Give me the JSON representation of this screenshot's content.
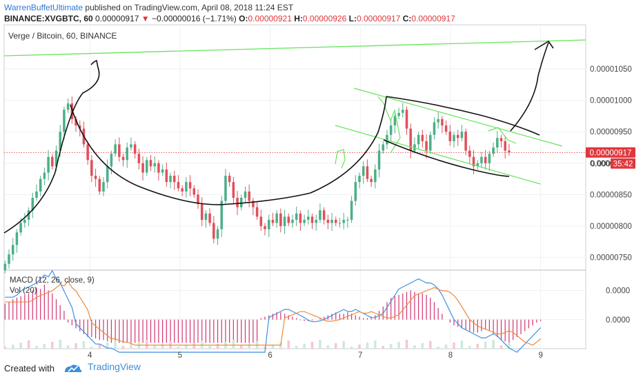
{
  "header": {
    "author": "WarrenBuffetUltimate",
    "published": "published on TradingView.com, April 08, 2018 11:24 EST",
    "symbol": "BINANCE:XVGBTC, 60",
    "last": "0.00000917",
    "change": "−0.00000016 (−1.71%)",
    "o_label": "O:",
    "o_value": "0.00000921",
    "h_label": "H:",
    "h_value": "0.00000926",
    "l_label": "L:",
    "l_value": "0.00000917",
    "c_label": "C:",
    "c_value": "0.00000917"
  },
  "footer": {
    "created_with": "Created with",
    "brand": "TradingView"
  },
  "chart_data": {
    "type": "candlestick",
    "title": "Verge / Bitcoin, 60, BINANCE",
    "price_axis": {
      "ticks": [
        "0.00001050",
        "0.00001000",
        "0.00000950",
        "0.00000900",
        "0.00000850",
        "0.00000800",
        "0.00000750"
      ],
      "tick_values": [
        10.5,
        10.0,
        9.5,
        9.0,
        8.5,
        8.0,
        7.5
      ],
      "range": [
        7.3,
        11.2
      ]
    },
    "x_axis": {
      "ticks": [
        "4",
        "5",
        "6",
        "7",
        "8",
        "9"
      ],
      "tick_values": [
        4,
        5,
        6,
        7,
        8,
        9
      ],
      "range": [
        3.05,
        9.5
      ]
    },
    "last_price_label": "0.00000917",
    "last_price_value": 9.17,
    "countdown_prefix": "0.000",
    "countdown": "35:42",
    "candle_close": [
      7.4,
      7.55,
      7.7,
      7.9,
      8.05,
      8.1,
      8.25,
      8.45,
      8.55,
      8.75,
      8.85,
      9.1,
      8.95,
      9.2,
      9.5,
      9.85,
      9.95,
      9.7,
      9.6,
      9.55,
      9.3,
      9.05,
      8.8,
      8.75,
      8.55,
      8.7,
      8.95,
      9.15,
      9.3,
      9.1,
      9.05,
      9.25,
      9.3,
      9.15,
      9.0,
      8.85,
      9.05,
      8.95,
      9.0,
      8.85,
      8.9,
      8.7,
      8.8,
      8.7,
      8.6,
      8.55,
      8.7,
      8.6,
      8.5,
      8.35,
      8.1,
      8.2,
      8.05,
      7.8,
      7.95,
      8.4,
      8.8,
      8.7,
      8.45,
      8.3,
      8.45,
      8.55,
      8.4,
      8.3,
      8.15,
      8.0,
      7.95,
      8.1,
      8.05,
      8.2,
      8.0,
      8.15,
      8.05,
      8.1,
      8.2,
      8.05,
      8.1,
      8.15,
      8.05,
      8.1,
      8.25,
      8.1,
      8.05,
      8.1,
      8.05,
      8.05,
      8.1,
      8.1,
      8.4,
      8.7,
      8.8,
      8.95,
      8.75,
      8.7,
      8.9,
      9.2,
      9.3,
      9.45,
      9.6,
      9.75,
      9.8,
      9.85,
      9.55,
      9.2,
      9.3,
      9.45,
      9.35,
      9.2,
      9.45,
      9.65,
      9.7,
      9.6,
      9.5,
      9.35,
      9.45,
      9.4,
      9.5,
      9.2,
      9.1,
      8.95,
      9.0,
      9.1,
      9.0,
      9.15,
      9.25,
      9.4,
      9.35,
      9.2,
      9.17
    ],
    "macd_label": "MACD (12, 26, close, 9)",
    "vol_label": "Vol (20)",
    "macd_axis": {
      "ticks": [
        "0.0000",
        "0.0000"
      ],
      "tick_values": [
        1,
        0
      ],
      "range": [
        -1.0,
        1.7
      ]
    },
    "macd_hist": [
      0.55,
      0.6,
      0.7,
      0.75,
      0.8,
      0.85,
      0.9,
      1.0,
      1.1,
      1.05,
      1.2,
      1.0,
      0.9,
      0.7,
      0.5,
      0.3,
      -0.1,
      -0.2,
      -0.3,
      -0.4,
      -0.5,
      -0.6,
      -0.6,
      -0.65,
      -0.7,
      -0.7,
      -0.75,
      -0.8,
      -0.8,
      -0.8,
      -0.8,
      -0.8,
      -0.8,
      -0.8,
      -0.8,
      -0.8,
      -0.8,
      -0.8,
      -0.8,
      -0.8,
      -0.8,
      -0.8,
      -0.8,
      -0.8,
      -0.8,
      -0.8,
      -0.8,
      -0.8,
      -0.8,
      -0.8,
      -0.8,
      -0.8,
      -0.8,
      -0.8,
      -0.8,
      -0.8,
      -0.8,
      -0.8,
      -0.8,
      -0.8,
      -0.8,
      -0.8,
      -0.8,
      -0.8,
      -0.8,
      0.05,
      0.1,
      0.15,
      0.2,
      0.25,
      0.25,
      0.2,
      0.15,
      0.1,
      0.05,
      -0.02,
      -0.05,
      -0.05,
      -0.03,
      0.0,
      0.05,
      0.1,
      0.15,
      0.2,
      0.25,
      0.2,
      0.2,
      0.25,
      0.2,
      0.15,
      0.1,
      0.05,
      0.05,
      0.1,
      0.15,
      0.3,
      0.45,
      0.6,
      0.75,
      0.8,
      0.85,
      0.9,
      0.95,
      1.0,
      0.95,
      0.9,
      0.9,
      0.85,
      0.75,
      0.6,
      0.4,
      0.2,
      0.0,
      -0.1,
      -0.2,
      -0.25,
      -0.3,
      -0.35,
      -0.4,
      -0.45,
      -0.45,
      -0.4,
      -0.35,
      -0.4,
      -0.5,
      -0.6,
      -0.7,
      -0.75,
      -0.8,
      -0.7,
      -0.6,
      -0.5,
      -0.4,
      -0.3,
      -0.2,
      -0.1,
      -0.05
    ],
    "colors": {
      "up": "#4caf87",
      "down": "#e0505a",
      "macd_hist": "#d2336f",
      "macd_line": "#3d8fe0",
      "signal_line": "#f0873a",
      "trendline": "#66e35a",
      "drawing": "#111111",
      "price_line": "#e0373c"
    }
  }
}
